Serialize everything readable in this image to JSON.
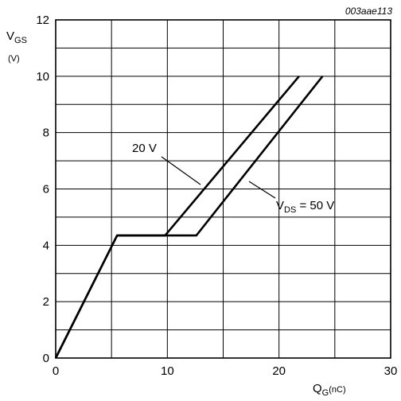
{
  "figure_code": "003aae113",
  "chart_data": {
    "type": "line",
    "ylabel": {
      "main": "V",
      "sub": "GS",
      "unit": "(V)"
    },
    "xlabel": {
      "main": "Q",
      "sub": "G",
      "unit": "(nC)"
    },
    "xlim": [
      0,
      30
    ],
    "ylim": [
      0,
      12
    ],
    "x_ticks": [
      "0",
      "10",
      "20",
      "30"
    ],
    "y_ticks": [
      "0",
      "2",
      "4",
      "6",
      "8",
      "10",
      "12"
    ],
    "grid": true,
    "series": [
      {
        "name": "20 V",
        "x": [
          0,
          5.5,
          9.8,
          21.8
        ],
        "y": [
          0,
          4.35,
          4.35,
          10
        ]
      },
      {
        "name": "VDS = 50 V",
        "x": [
          0,
          5.5,
          12.6,
          23.9
        ],
        "y": [
          0,
          4.35,
          4.35,
          10
        ]
      }
    ],
    "annotations": [
      {
        "text": "20 V"
      },
      {
        "main": "V",
        "sub": "DS",
        "rest": " = 50 V"
      }
    ]
  }
}
